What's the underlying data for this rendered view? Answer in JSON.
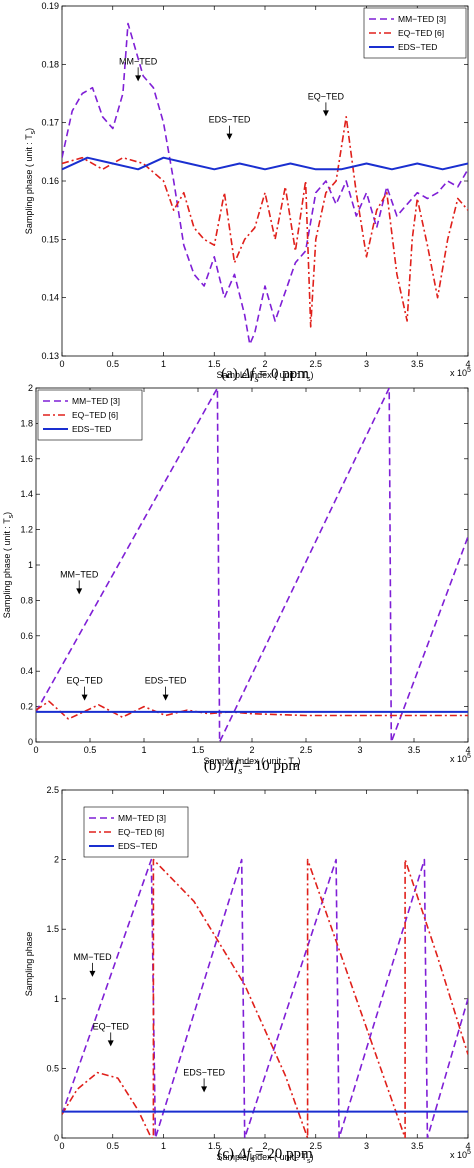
{
  "chart_data": [
    {
      "type": "line",
      "caption": "(a)  Δfs= 0 ppm",
      "xlabel": "Sample Index ( unit : Ts)",
      "ylabel": "Sampling phase ( unit : Ts)",
      "xlim": [
        0,
        4
      ],
      "ylim": [
        0.13,
        0.19
      ],
      "x_ticks": [
        "0",
        "0.5",
        "1",
        "1.5",
        "2",
        "2.5",
        "3",
        "3.5",
        "4"
      ],
      "y_ticks": [
        "0.13",
        "0.14",
        "0.15",
        "0.16",
        "0.17",
        "0.18",
        "0.19"
      ],
      "x_multiplier": "x 10^5",
      "legend_position": "top-right",
      "series": [
        {
          "name": "MM−TED [3]",
          "color": "#7f1fd6",
          "style": "dashed",
          "x": [
            0,
            0.1,
            0.2,
            0.3,
            0.4,
            0.5,
            0.6,
            0.65,
            0.7,
            0.8,
            0.9,
            1.0,
            1.1,
            1.2,
            1.3,
            1.4,
            1.5,
            1.6,
            1.7,
            1.8,
            1.85,
            1.9,
            2.0,
            2.1,
            2.2,
            2.3,
            2.4,
            2.5,
            2.6,
            2.7,
            2.8,
            2.9,
            3.0,
            3.1,
            3.2,
            3.3,
            3.4,
            3.5,
            3.6,
            3.7,
            3.8,
            3.9,
            4.0
          ],
          "y": [
            0.164,
            0.172,
            0.175,
            0.176,
            0.171,
            0.169,
            0.175,
            0.187,
            0.184,
            0.178,
            0.176,
            0.17,
            0.16,
            0.149,
            0.144,
            0.142,
            0.147,
            0.14,
            0.144,
            0.137,
            0.132,
            0.134,
            0.142,
            0.136,
            0.141,
            0.146,
            0.148,
            0.158,
            0.16,
            0.156,
            0.16,
            0.154,
            0.158,
            0.152,
            0.159,
            0.154,
            0.156,
            0.158,
            0.157,
            0.158,
            0.16,
            0.159,
            0.162
          ]
        },
        {
          "name": "EQ−TED [6]",
          "color": "#e0201b",
          "style": "dashdot",
          "x": [
            0,
            0.2,
            0.4,
            0.6,
            0.8,
            1.0,
            1.1,
            1.2,
            1.3,
            1.4,
            1.5,
            1.6,
            1.7,
            1.8,
            1.9,
            2.0,
            2.1,
            2.2,
            2.3,
            2.4,
            2.45,
            2.5,
            2.6,
            2.7,
            2.8,
            2.9,
            3.0,
            3.1,
            3.2,
            3.3,
            3.4,
            3.45,
            3.5,
            3.6,
            3.7,
            3.8,
            3.9,
            4.0
          ],
          "y": [
            0.163,
            0.164,
            0.162,
            0.164,
            0.163,
            0.16,
            0.155,
            0.158,
            0.152,
            0.15,
            0.149,
            0.158,
            0.146,
            0.15,
            0.152,
            0.158,
            0.15,
            0.159,
            0.148,
            0.16,
            0.135,
            0.15,
            0.158,
            0.16,
            0.171,
            0.158,
            0.147,
            0.155,
            0.158,
            0.144,
            0.136,
            0.15,
            0.157,
            0.149,
            0.14,
            0.15,
            0.157,
            0.155
          ]
        },
        {
          "name": "EDS−TED",
          "color": "#1a2fd0",
          "style": "solid",
          "x": [
            0,
            0.25,
            0.5,
            0.75,
            1.0,
            1.25,
            1.5,
            1.75,
            2.0,
            2.25,
            2.5,
            2.75,
            3.0,
            3.25,
            3.5,
            3.75,
            4.0
          ],
          "y": [
            0.162,
            0.164,
            0.163,
            0.162,
            0.164,
            0.163,
            0.162,
            0.163,
            0.162,
            0.163,
            0.162,
            0.162,
            0.163,
            0.162,
            0.163,
            0.162,
            0.163
          ]
        }
      ],
      "annotations": [
        {
          "text": "MM−TED",
          "x": 0.75,
          "y": 0.18
        },
        {
          "text": "EDS−TED",
          "x": 1.65,
          "y": 0.17
        },
        {
          "text": "EQ−TED",
          "x": 2.6,
          "y": 0.174
        }
      ]
    },
    {
      "type": "line",
      "caption": "(b)  Δfs= 10 ppm",
      "xlabel": "Sample Index ( unit : Ts)",
      "ylabel": "Sampling phase ( unit : Ts)",
      "xlim": [
        0,
        4
      ],
      "ylim": [
        0,
        2
      ],
      "x_ticks": [
        "0",
        "0.5",
        "1",
        "1.5",
        "2",
        "2.5",
        "3",
        "3.5",
        "4"
      ],
      "y_ticks": [
        "0",
        "0.2",
        "0.4",
        "0.6",
        "0.8",
        "1",
        "1.2",
        "1.4",
        "1.6",
        "1.8",
        "2"
      ],
      "x_multiplier": "x 10^5",
      "legend_position": "top-left",
      "series": [
        {
          "name": "MM−TED [3]",
          "color": "#7f1fd6",
          "style": "dashed",
          "x": [
            0,
            1.68,
            1.68,
            1.7,
            3.27,
            3.27,
            3.29,
            4.0
          ],
          "y": [
            0.17,
            2.0,
            2.0,
            0.0,
            2.0,
            2.0,
            0.0,
            1.16
          ]
        },
        {
          "name": "EQ−TED [6]",
          "color": "#e0201b",
          "style": "dashdot",
          "x": [
            0,
            0.12,
            0.3,
            0.58,
            0.8,
            1.0,
            1.2,
            1.4,
            1.6,
            1.8,
            2.0,
            2.5,
            3.0,
            3.5,
            4.0
          ],
          "y": [
            0.18,
            0.23,
            0.13,
            0.21,
            0.14,
            0.2,
            0.15,
            0.18,
            0.16,
            0.17,
            0.16,
            0.15,
            0.15,
            0.15,
            0.15
          ]
        },
        {
          "name": "EDS−TED",
          "color": "#1a2fd0",
          "style": "solid",
          "x": [
            0,
            1.0,
            2.0,
            3.0,
            4.0
          ],
          "y": [
            0.17,
            0.17,
            0.17,
            0.17,
            0.17
          ]
        }
      ],
      "annotations": [
        {
          "text": "MM−TED",
          "x": 0.4,
          "y": 0.93
        },
        {
          "text": "EQ−TED",
          "x": 0.45,
          "y": 0.33
        },
        {
          "text": "EDS−TED",
          "x": 1.2,
          "y": 0.33
        }
      ]
    },
    {
      "type": "line",
      "caption": "(c)  Δfs= 20 ppm",
      "xlabel": "Sample Index ( unit : Ts)",
      "ylabel": "Sampling phase",
      "xlim": [
        0,
        4
      ],
      "ylim": [
        0,
        2.5
      ],
      "x_ticks": [
        "0",
        "0.5",
        "1",
        "1.5",
        "2",
        "2.5",
        "3",
        "3.5",
        "4"
      ],
      "y_ticks": [
        "0",
        "0.5",
        "1",
        "1.5",
        "2",
        "2.5"
      ],
      "x_multiplier": "x 10^5",
      "legend_position": "top-center",
      "series": [
        {
          "name": "MM−TED [3]",
          "color": "#7f1fd6",
          "style": "dashed",
          "x": [
            0,
            0.88,
            0.88,
            0.92,
            1.77,
            1.77,
            1.8,
            2.7,
            2.7,
            2.73,
            3.57,
            3.57,
            3.6,
            4.0
          ],
          "y": [
            0.17,
            2.0,
            2.0,
            0.0,
            2.0,
            2.0,
            0.0,
            2.0,
            2.0,
            0.0,
            2.0,
            2.0,
            0.0,
            1.0
          ]
        },
        {
          "name": "EQ−TED [6]",
          "color": "#e0201b",
          "style": "dashdot",
          "x": [
            0,
            0.15,
            0.35,
            0.55,
            0.75,
            0.88,
            0.9,
            0.9,
            1.3,
            1.8,
            2.2,
            2.42,
            2.42,
            2.9,
            3.38,
            3.38,
            3.7,
            4.0
          ],
          "y": [
            0.17,
            0.35,
            0.47,
            0.43,
            0.2,
            0.0,
            0.0,
            2.0,
            1.7,
            1.1,
            0.45,
            0.0,
            2.0,
            1.0,
            0.0,
            2.0,
            1.3,
            0.6
          ]
        },
        {
          "name": "EDS−TED",
          "color": "#1a2fd0",
          "style": "solid",
          "x": [
            0,
            1.0,
            2.0,
            3.0,
            4.0
          ],
          "y": [
            0.19,
            0.19,
            0.19,
            0.19,
            0.19
          ]
        }
      ],
      "annotations": [
        {
          "text": "MM−TED",
          "x": 0.3,
          "y": 1.28
        },
        {
          "text": "EQ−TED",
          "x": 0.48,
          "y": 0.78
        },
        {
          "text": "EDS−TED",
          "x": 1.4,
          "y": 0.45
        }
      ]
    }
  ]
}
